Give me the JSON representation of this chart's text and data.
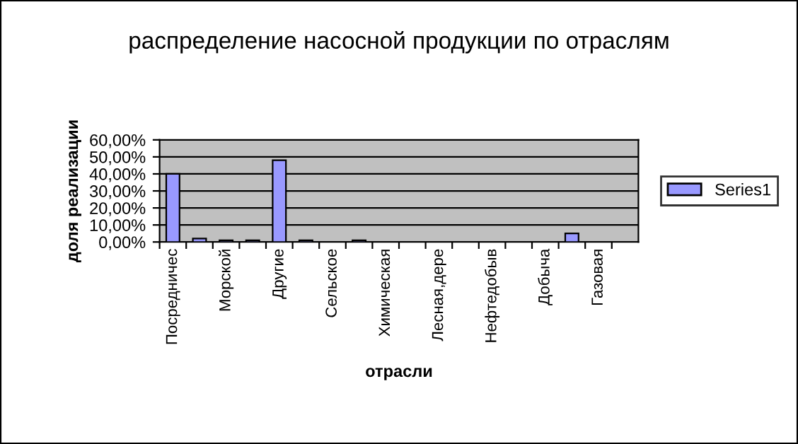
{
  "chart_data": {
    "type": "bar",
    "title": "распределение насосной продукции по отраслям",
    "xlabel": "отрасли",
    "ylabel": "доля реализации",
    "categories": [
      "Посредничес",
      null,
      "Морской",
      null,
      "Другие",
      null,
      "Сельское",
      null,
      "Химическая",
      null,
      "Лесная,дере",
      null,
      "Нефтедобыв",
      null,
      "Добыча",
      null,
      "Газовая",
      null
    ],
    "series": [
      {
        "name": "Series1",
        "color": "#9999ff",
        "values": [
          40,
          2,
          1,
          1,
          48,
          1,
          0,
          1,
          0,
          0,
          0,
          0,
          0,
          0,
          0,
          5,
          0,
          0
        ]
      }
    ],
    "ylim": [
      0,
      60
    ],
    "yticks": [
      {
        "value": 0,
        "label": "0,00%"
      },
      {
        "value": 10,
        "label": "10,00%"
      },
      {
        "value": 20,
        "label": "20,00%"
      },
      {
        "value": 30,
        "label": "30,00%"
      },
      {
        "value": 40,
        "label": "40,00%"
      },
      {
        "value": 50,
        "label": "50,00%"
      },
      {
        "value": 60,
        "label": "60,00%"
      }
    ],
    "grid": "y",
    "legend": "right"
  }
}
